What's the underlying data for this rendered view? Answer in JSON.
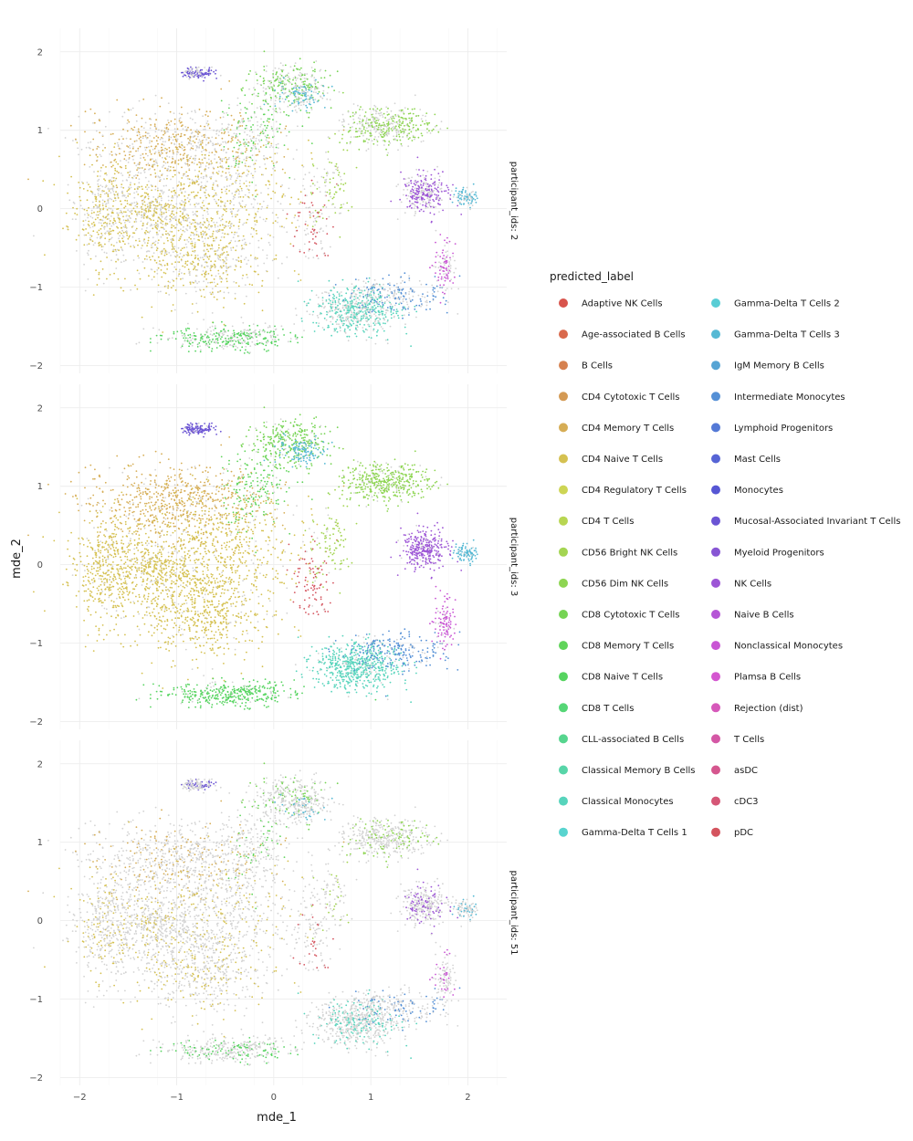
{
  "chart_data": {
    "type": "scatter",
    "xlabel": "mde_1",
    "ylabel": "mde_2",
    "xlim": [
      -2.2,
      2.4
    ],
    "ylim": [
      -2.1,
      2.3
    ],
    "x_ticks": [
      -2,
      -1,
      0,
      1,
      2
    ],
    "y_ticks": [
      -2,
      -1,
      0,
      1,
      2
    ],
    "x_tick_labels": [
      "−2",
      "−1",
      "0",
      "1",
      "2"
    ],
    "y_tick_labels": [
      "−2",
      "−1",
      "0",
      "1",
      "2"
    ],
    "grid": true,
    "legend_title": "predicted_label",
    "legend_position": "right",
    "facets": [
      "participant_ids: 2",
      "participant_ids: 3",
      "participant_ids: 51"
    ],
    "series": [
      {
        "name": "Adaptive NK Cells",
        "color": "#D8544C"
      },
      {
        "name": "Age-associated B Cells",
        "color": "#D9694C"
      },
      {
        "name": "B Cells",
        "color": "#D6814F"
      },
      {
        "name": "CD4 Cytotoxic T Cells",
        "color": "#D49A54"
      },
      {
        "name": "CD4 Memory T Cells",
        "color": "#D6AD55"
      },
      {
        "name": "CD4 Naive T Cells",
        "color": "#D5C151"
      },
      {
        "name": "CD4 Regulatory T Cells",
        "color": "#CDD554"
      },
      {
        "name": "CD4 T Cells",
        "color": "#B8D652"
      },
      {
        "name": "CD56 Bright NK Cells",
        "color": "#A4D552"
      },
      {
        "name": "CD56 Dim NK Cells",
        "color": "#8ED552"
      },
      {
        "name": "CD8 Cytotoxic T Cells",
        "color": "#76D454"
      },
      {
        "name": "CD8 Memory T Cells",
        "color": "#60D45A"
      },
      {
        "name": "CD8 Naive T Cells",
        "color": "#56D460"
      },
      {
        "name": "CD8 T Cells",
        "color": "#55D676"
      },
      {
        "name": "CLL-associated B Cells",
        "color": "#56D58E"
      },
      {
        "name": "Classical Memory B Cells",
        "color": "#57D5A8"
      },
      {
        "name": "Classical Monocytes",
        "color": "#57D4BC"
      },
      {
        "name": "Gamma-Delta T Cells 1",
        "color": "#58D4CF"
      },
      {
        "name": "Gamma-Delta T Cells 2",
        "color": "#59CDD5"
      },
      {
        "name": "Gamma-Delta T Cells 3",
        "color": "#56B9D4"
      },
      {
        "name": "IgM Memory B Cells",
        "color": "#56A4D4"
      },
      {
        "name": "Intermediate Monocytes",
        "color": "#5590D6"
      },
      {
        "name": "Lymphoid Progenitors",
        "color": "#5479D6"
      },
      {
        "name": "Mast Cells",
        "color": "#5664D5"
      },
      {
        "name": "Monocytes",
        "color": "#5656D4"
      },
      {
        "name": "Mucosal-Associated Invariant T Cells",
        "color": "#6B54D4"
      },
      {
        "name": "Myeloid Progenitors",
        "color": "#8756D4"
      },
      {
        "name": "NK Cells",
        "color": "#9D56D6"
      },
      {
        "name": "Naive B Cells",
        "color": "#B556D6"
      },
      {
        "name": "Nonclassical Monocytes",
        "color": "#C955D4"
      },
      {
        "name": "Plamsa B Cells",
        "color": "#D456D0"
      },
      {
        "name": "Rejection (dist)",
        "color": "#D658BA"
      },
      {
        "name": "T Cells",
        "color": "#D457A5"
      },
      {
        "name": "asDC",
        "color": "#D5568E"
      },
      {
        "name": "cDC3",
        "color": "#D55676"
      },
      {
        "name": "pDC",
        "color": "#D4545E"
      }
    ],
    "unlabeled_color": "#D3D3D3",
    "clusters": [
      {
        "cx": -1.75,
        "cy": -0.05,
        "sx": 0.18,
        "sy": 0.35,
        "n": 420,
        "label": "CD4 Naive T Cells"
      },
      {
        "cx": -1.25,
        "cy": -0.05,
        "sx": 0.25,
        "sy": 0.25,
        "n": 380,
        "label": "CD4 Naive T Cells"
      },
      {
        "cx": -0.7,
        "cy": -0.55,
        "sx": 0.35,
        "sy": 0.35,
        "n": 700,
        "label": "CD4 Naive T Cells"
      },
      {
        "cx": -1.0,
        "cy": 0.8,
        "sx": 0.45,
        "sy": 0.25,
        "n": 650,
        "label": "CD4 Memory T Cells"
      },
      {
        "cx": -0.55,
        "cy": 0.3,
        "sx": 0.4,
        "sy": 0.3,
        "n": 450,
        "label": "CD4 Naive T Cells"
      },
      {
        "cx": -0.45,
        "cy": -1.65,
        "sx": 0.35,
        "sy": 0.08,
        "n": 380,
        "label": "CD8 Naive T Cells"
      },
      {
        "cx": -0.78,
        "cy": 1.73,
        "sx": 0.08,
        "sy": 0.04,
        "n": 120,
        "label": "Mucosal-Associated Invariant T Cells"
      },
      {
        "cx": 0.15,
        "cy": 1.55,
        "sx": 0.2,
        "sy": 0.15,
        "n": 300,
        "label": "CD8 Cytotoxic T Cells"
      },
      {
        "cx": 0.3,
        "cy": 1.45,
        "sx": 0.12,
        "sy": 0.08,
        "n": 120,
        "label": "Gamma-Delta T Cells 3"
      },
      {
        "cx": -0.2,
        "cy": 1.0,
        "sx": 0.2,
        "sy": 0.25,
        "n": 180,
        "label": "CD8 Memory T Cells"
      },
      {
        "cx": 1.15,
        "cy": 1.05,
        "sx": 0.22,
        "sy": 0.12,
        "n": 420,
        "label": "CD56 Dim NK Cells"
      },
      {
        "cx": 1.55,
        "cy": 0.2,
        "sx": 0.12,
        "sy": 0.12,
        "n": 320,
        "label": "NK Cells"
      },
      {
        "cx": 1.98,
        "cy": 0.15,
        "sx": 0.06,
        "sy": 0.06,
        "n": 90,
        "label": "Gamma-Delta T Cells 3"
      },
      {
        "cx": 0.85,
        "cy": -1.3,
        "sx": 0.22,
        "sy": 0.15,
        "n": 600,
        "label": "Classical Monocytes"
      },
      {
        "cx": 1.3,
        "cy": -1.1,
        "sx": 0.25,
        "sy": 0.12,
        "n": 220,
        "label": "Intermediate Monocytes"
      },
      {
        "cx": 1.75,
        "cy": -0.75,
        "sx": 0.06,
        "sy": 0.15,
        "n": 110,
        "label": "Nonclassical Monocytes"
      },
      {
        "cx": 0.4,
        "cy": -0.2,
        "sx": 0.1,
        "sy": 0.25,
        "n": 90,
        "label": "pDC"
      },
      {
        "cx": 0.6,
        "cy": 0.3,
        "sx": 0.12,
        "sy": 0.25,
        "n": 100,
        "label": "CD56 Bright NK Cells"
      }
    ]
  }
}
